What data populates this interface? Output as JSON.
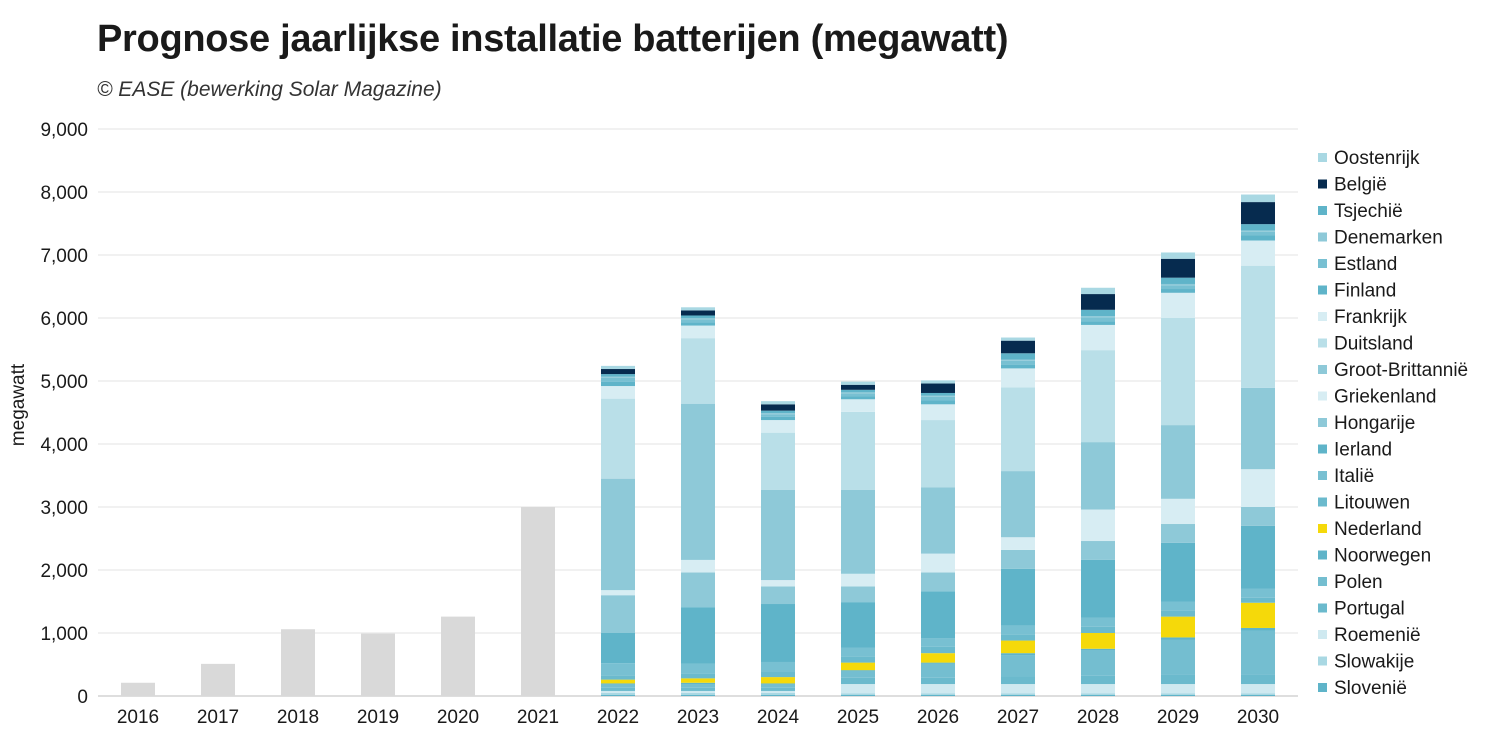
{
  "title": "Prognose jaarlijkse installatie batterijen (megawatt)",
  "subtitle": "© EASE (bewerking Solar Magazine)",
  "chart_data": {
    "type": "bar",
    "stacked": true,
    "ylabel": "megawatt",
    "xlabel": "",
    "ylim": [
      0,
      9000
    ],
    "yticks": [
      0,
      1000,
      2000,
      3000,
      4000,
      5000,
      6000,
      7000,
      8000,
      9000
    ],
    "ytick_labels": [
      "0",
      "1,000",
      "2,000",
      "3,000",
      "4,000",
      "5,000",
      "6,000",
      "7,000",
      "8,000",
      "9,000"
    ],
    "grid": true,
    "legend_position": "right",
    "categories": [
      "2016",
      "2017",
      "2018",
      "2019",
      "2020",
      "2021",
      "2022",
      "2023",
      "2024",
      "2025",
      "2026",
      "2027",
      "2028",
      "2029",
      "2030"
    ],
    "historical": {
      "color": "#d9d9d9",
      "values": [
        210,
        510,
        1060,
        990,
        1260,
        3000,
        null,
        null,
        null,
        null,
        null,
        null,
        null,
        null,
        null
      ]
    },
    "series": [
      {
        "name": "Slovenië",
        "color": "#5fb4c9",
        "values": [
          null,
          null,
          null,
          null,
          null,
          null,
          20,
          20,
          20,
          20,
          20,
          20,
          20,
          20,
          20
        ]
      },
      {
        "name": "Slowakije",
        "color": "#a9d8e3",
        "values": [
          null,
          null,
          null,
          null,
          null,
          null,
          30,
          30,
          30,
          20,
          20,
          20,
          20,
          20,
          20
        ]
      },
      {
        "name": "Roemenië",
        "color": "#cfe9f0",
        "values": [
          null,
          null,
          null,
          null,
          null,
          null,
          30,
          30,
          30,
          150,
          150,
          150,
          150,
          150,
          150
        ]
      },
      {
        "name": "Portugal",
        "color": "#6bbacd",
        "values": [
          null,
          null,
          null,
          null,
          null,
          null,
          50,
          50,
          50,
          100,
          100,
          120,
          130,
          150,
          150
        ]
      },
      {
        "name": "Polen",
        "color": "#74bed0",
        "values": [
          null,
          null,
          null,
          null,
          null,
          null,
          50,
          60,
          50,
          100,
          220,
          340,
          400,
          550,
          700
        ]
      },
      {
        "name": "Noorwegen",
        "color": "#5fb4c9",
        "values": [
          null,
          null,
          null,
          null,
          null,
          null,
          20,
          20,
          20,
          20,
          20,
          30,
          30,
          40,
          40
        ]
      },
      {
        "name": "Nederland",
        "color": "#f5d90a",
        "values": [
          null,
          null,
          null,
          null,
          null,
          null,
          60,
          70,
          100,
          120,
          150,
          200,
          250,
          330,
          400
        ]
      },
      {
        "name": "Litouwen",
        "color": "#6bbacd",
        "values": [
          null,
          null,
          null,
          null,
          null,
          null,
          70,
          80,
          90,
          100,
          100,
          100,
          100,
          100,
          80
        ]
      },
      {
        "name": "Italië",
        "color": "#78c0d2",
        "values": [
          null,
          null,
          null,
          null,
          null,
          null,
          190,
          150,
          150,
          140,
          140,
          140,
          140,
          140,
          140
        ]
      },
      {
        "name": "Ierland",
        "color": "#5fb4c9",
        "values": [
          null,
          null,
          null,
          null,
          null,
          null,
          480,
          900,
          920,
          720,
          740,
          900,
          920,
          930,
          1000
        ]
      },
      {
        "name": "Hongarije",
        "color": "#8ec9d8",
        "values": [
          null,
          null,
          null,
          null,
          null,
          null,
          600,
          550,
          280,
          250,
          300,
          300,
          300,
          300,
          300
        ]
      },
      {
        "name": "Griekenland",
        "color": "#d7edf3",
        "values": [
          null,
          null,
          null,
          null,
          null,
          null,
          80,
          200,
          100,
          200,
          300,
          200,
          500,
          400,
          600
        ]
      },
      {
        "name": "Groot-Brittannië",
        "color": "#8ec9d8",
        "values": [
          null,
          null,
          null,
          null,
          null,
          null,
          1770,
          2480,
          1430,
          1330,
          1050,
          1050,
          1070,
          1170,
          1290
        ]
      },
      {
        "name": "Duitsland",
        "color": "#b9dfe8",
        "values": [
          null,
          null,
          null,
          null,
          null,
          null,
          1270,
          1040,
          910,
          1240,
          1070,
          1330,
          1460,
          1700,
          1940
        ]
      },
      {
        "name": "Frankrijk",
        "color": "#d7edf3",
        "values": [
          null,
          null,
          null,
          null,
          null,
          null,
          200,
          200,
          200,
          200,
          250,
          300,
          400,
          400,
          400
        ]
      },
      {
        "name": "Finland",
        "color": "#5fb4c9",
        "values": [
          null,
          null,
          null,
          null,
          null,
          null,
          70,
          50,
          50,
          50,
          60,
          60,
          60,
          60,
          80
        ]
      },
      {
        "name": "Estland",
        "color": "#78c0d2",
        "values": [
          null,
          null,
          null,
          null,
          null,
          null,
          60,
          50,
          40,
          40,
          60,
          60,
          60,
          60,
          60
        ]
      },
      {
        "name": "Denemarken",
        "color": "#8ec9d8",
        "values": [
          null,
          null,
          null,
          null,
          null,
          null,
          20,
          20,
          20,
          20,
          20,
          20,
          20,
          20,
          20
        ]
      },
      {
        "name": "Tsjechië",
        "color": "#5fb4c9",
        "values": [
          null,
          null,
          null,
          null,
          null,
          null,
          40,
          40,
          40,
          40,
          40,
          100,
          100,
          100,
          100
        ]
      },
      {
        "name": "België",
        "color": "#062b4f",
        "values": [
          null,
          null,
          null,
          null,
          null,
          null,
          80,
          80,
          100,
          80,
          150,
          200,
          250,
          300,
          350
        ]
      },
      {
        "name": "Oostenrijk",
        "color": "#a9d8e3",
        "values": [
          null,
          null,
          null,
          null,
          null,
          null,
          50,
          50,
          50,
          50,
          50,
          50,
          100,
          100,
          120
        ]
      }
    ]
  }
}
